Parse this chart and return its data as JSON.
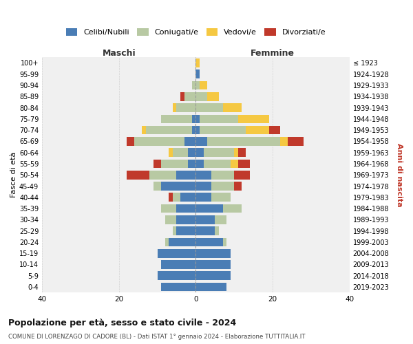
{
  "age_groups": [
    "0-4",
    "5-9",
    "10-14",
    "15-19",
    "20-24",
    "25-29",
    "30-34",
    "35-39",
    "40-44",
    "45-49",
    "50-54",
    "55-59",
    "60-64",
    "65-69",
    "70-74",
    "75-79",
    "80-84",
    "85-89",
    "90-94",
    "95-99",
    "100+"
  ],
  "birth_years": [
    "2019-2023",
    "2014-2018",
    "2009-2013",
    "2004-2008",
    "1999-2003",
    "1994-1998",
    "1989-1993",
    "1984-1988",
    "1979-1983",
    "1974-1978",
    "1969-1973",
    "1964-1968",
    "1959-1963",
    "1954-1958",
    "1949-1953",
    "1944-1948",
    "1939-1943",
    "1934-1938",
    "1929-1933",
    "1924-1928",
    "≤ 1923"
  ],
  "colors": {
    "celibi": "#4a7db5",
    "coniugati": "#b8c9a3",
    "vedovi": "#f5c842",
    "divorziati": "#c0392b"
  },
  "maschi": {
    "celibi": [
      9,
      10,
      9,
      10,
      7,
      5,
      5,
      5,
      4,
      9,
      5,
      2,
      2,
      3,
      1,
      1,
      0,
      0,
      0,
      0,
      0
    ],
    "coniugati": [
      0,
      0,
      0,
      0,
      1,
      1,
      3,
      4,
      2,
      2,
      7,
      7,
      4,
      13,
      12,
      8,
      5,
      3,
      1,
      0,
      0
    ],
    "vedovi": [
      0,
      0,
      0,
      0,
      0,
      0,
      0,
      0,
      0,
      0,
      0,
      0,
      1,
      0,
      1,
      0,
      1,
      0,
      0,
      0,
      0
    ],
    "divorziati": [
      0,
      0,
      0,
      0,
      0,
      0,
      0,
      0,
      1,
      0,
      6,
      2,
      0,
      2,
      0,
      0,
      0,
      1,
      0,
      0,
      0
    ]
  },
  "femmine": {
    "celibi": [
      8,
      9,
      9,
      9,
      7,
      5,
      5,
      7,
      4,
      4,
      4,
      2,
      2,
      3,
      1,
      1,
      0,
      0,
      0,
      1,
      0
    ],
    "coniugati": [
      0,
      0,
      0,
      0,
      1,
      1,
      3,
      5,
      5,
      6,
      6,
      7,
      8,
      19,
      12,
      10,
      7,
      3,
      1,
      0,
      0
    ],
    "vedovi": [
      0,
      0,
      0,
      0,
      0,
      0,
      0,
      0,
      0,
      0,
      0,
      2,
      1,
      2,
      6,
      8,
      5,
      3,
      2,
      0,
      1
    ],
    "divorziati": [
      0,
      0,
      0,
      0,
      0,
      0,
      0,
      0,
      0,
      2,
      4,
      3,
      2,
      4,
      3,
      0,
      0,
      0,
      0,
      0,
      0
    ]
  },
  "xlim": 40,
  "title": "Popolazione per età, sesso e stato civile - 2024",
  "subtitle": "COMUNE DI LORENZAGO DI CADORE (BL) - Dati ISTAT 1° gennaio 2024 - Elaborazione TUTTITALIA.IT",
  "ylabel_left": "Fasce di età",
  "ylabel_right": "Anni di nascita",
  "xlabel_maschi": "Maschi",
  "xlabel_femmine": "Femmine",
  "legend_labels": [
    "Celibi/Nubili",
    "Coniugati/e",
    "Vedovi/e",
    "Divorziati/e"
  ],
  "bg_color": "#f0f0f0"
}
